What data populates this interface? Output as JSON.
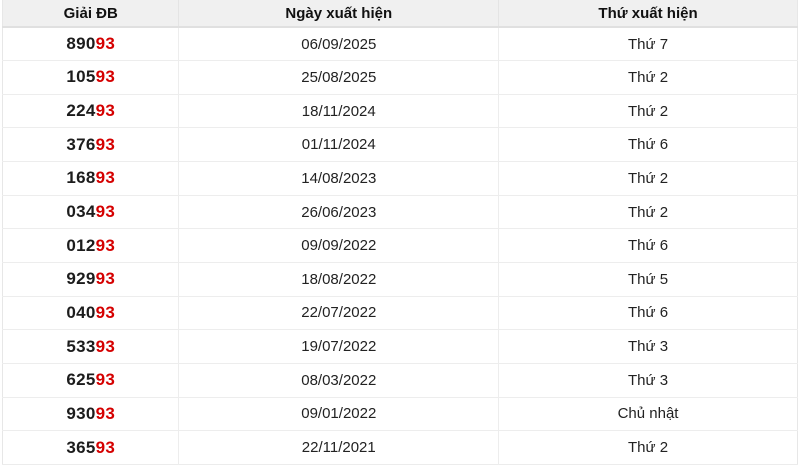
{
  "colors": {
    "header_background": "#f0f0f0",
    "header_text": "#111111",
    "prize_text": "#1c1c1c",
    "prize_highlight_red": "#d50000",
    "body_text": "#222222",
    "grid_border": "#ededed"
  },
  "table": {
    "columns": [
      {
        "key": "prize",
        "label": "Giải ĐB"
      },
      {
        "key": "date",
        "label": "Ngày xuất hiện"
      },
      {
        "key": "weekday",
        "label": "Thứ xuất hiện"
      }
    ],
    "rows": [
      {
        "prize_prefix": "890",
        "prize_suffix": "93",
        "date": "06/09/2025",
        "weekday": "Thứ 7"
      },
      {
        "prize_prefix": "105",
        "prize_suffix": "93",
        "date": "25/08/2025",
        "weekday": "Thứ 2"
      },
      {
        "prize_prefix": "224",
        "prize_suffix": "93",
        "date": "18/11/2024",
        "weekday": "Thứ 2"
      },
      {
        "prize_prefix": "376",
        "prize_suffix": "93",
        "date": "01/11/2024",
        "weekday": "Thứ 6"
      },
      {
        "prize_prefix": "168",
        "prize_suffix": "93",
        "date": "14/08/2023",
        "weekday": "Thứ 2"
      },
      {
        "prize_prefix": "034",
        "prize_suffix": "93",
        "date": "26/06/2023",
        "weekday": "Thứ 2"
      },
      {
        "prize_prefix": "012",
        "prize_suffix": "93",
        "date": "09/09/2022",
        "weekday": "Thứ 6"
      },
      {
        "prize_prefix": "929",
        "prize_suffix": "93",
        "date": "18/08/2022",
        "weekday": "Thứ 5"
      },
      {
        "prize_prefix": "040",
        "prize_suffix": "93",
        "date": "22/07/2022",
        "weekday": "Thứ 6"
      },
      {
        "prize_prefix": "533",
        "prize_suffix": "93",
        "date": "19/07/2022",
        "weekday": "Thứ 3"
      },
      {
        "prize_prefix": "625",
        "prize_suffix": "93",
        "date": "08/03/2022",
        "weekday": "Thứ 3"
      },
      {
        "prize_prefix": "930",
        "prize_suffix": "93",
        "date": "09/01/2022",
        "weekday": "Chủ nhật"
      },
      {
        "prize_prefix": "365",
        "prize_suffix": "93",
        "date": "22/11/2021",
        "weekday": "Thứ 2"
      }
    ]
  }
}
